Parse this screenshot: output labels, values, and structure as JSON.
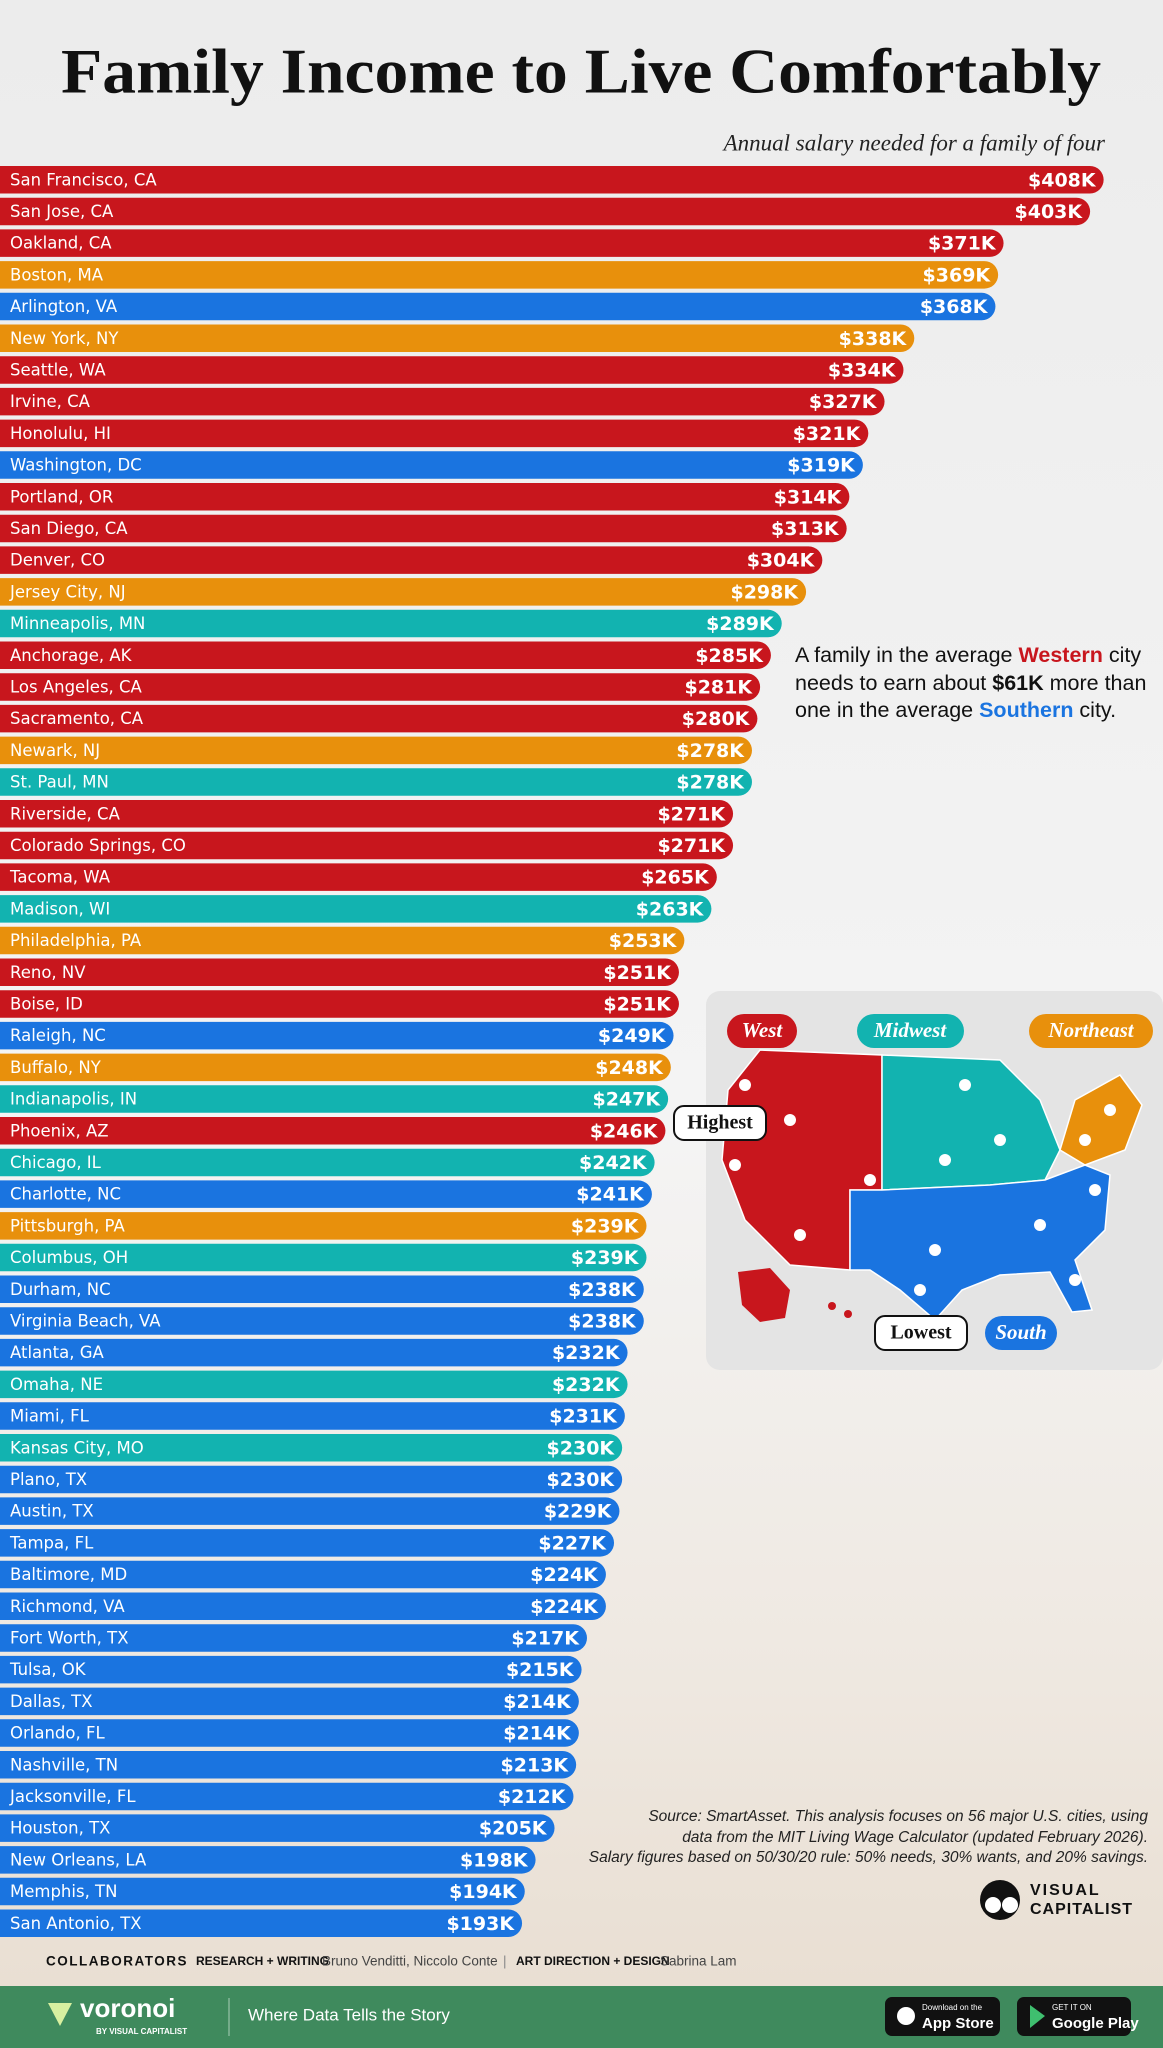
{
  "chart_data": {
    "type": "bar",
    "title": "Family Income to Live Comfortably",
    "subtitle": "Annual salary needed for a family of four",
    "categories": [
      "San Francisco, CA",
      "San Jose, CA",
      "Oakland, CA",
      "Boston, MA",
      "Arlington, VA",
      "New York, NY",
      "Seattle, WA",
      "Irvine, CA",
      "Honolulu, HI",
      "Washington, DC",
      "Portland, OR",
      "San Diego, CA",
      "Denver, CO",
      "Jersey City, NJ",
      "Minneapolis, MN",
      "Anchorage, AK",
      "Los Angeles, CA",
      "Sacramento, CA",
      "Newark, NJ",
      "St. Paul, MN",
      "Riverside, CA",
      "Colorado Springs, CO",
      "Tacoma, WA",
      "Madison, WI",
      "Philadelphia, PA",
      "Reno, NV",
      "Boise, ID",
      "Raleigh, NC",
      "Buffalo, NY",
      "Indianapolis, IN",
      "Phoenix, AZ",
      "Chicago, IL",
      "Charlotte, NC",
      "Pittsburgh, PA",
      "Columbus, OH",
      "Durham, NC",
      "Virginia Beach, VA",
      "Atlanta, GA",
      "Omaha, NE",
      "Miami, FL",
      "Kansas City, MO",
      "Plano, TX",
      "Austin, TX",
      "Tampa, FL",
      "Baltimore, MD",
      "Richmond, VA",
      "Fort Worth, TX",
      "Tulsa, OK",
      "Dallas, TX",
      "Orlando, FL",
      "Nashville, TN",
      "Jacksonville, FL",
      "Houston, TX",
      "New Orleans, LA",
      "Memphis, TN",
      "San Antonio, TX"
    ],
    "values": [
      408,
      403,
      371,
      369,
      368,
      338,
      334,
      327,
      321,
      319,
      314,
      313,
      304,
      298,
      289,
      285,
      281,
      280,
      278,
      278,
      271,
      271,
      265,
      263,
      253,
      251,
      251,
      249,
      248,
      247,
      246,
      242,
      241,
      239,
      239,
      238,
      238,
      232,
      232,
      231,
      230,
      230,
      229,
      227,
      224,
      224,
      217,
      215,
      214,
      214,
      213,
      212,
      205,
      198,
      194,
      193
    ],
    "value_labels": [
      "$408K",
      "$403K",
      "$371K",
      "$369K",
      "$368K",
      "$338K",
      "$334K",
      "$327K",
      "$321K",
      "$319K",
      "$314K",
      "$313K",
      "$304K",
      "$298K",
      "$289K",
      "$285K",
      "$281K",
      "$280K",
      "$278K",
      "$278K",
      "$271K",
      "$271K",
      "$265K",
      "$263K",
      "$253K",
      "$251K",
      "$251K",
      "$249K",
      "$248K",
      "$247K",
      "$246K",
      "$242K",
      "$241K",
      "$239K",
      "$239K",
      "$238K",
      "$238K",
      "$232K",
      "$232K",
      "$231K",
      "$230K",
      "$230K",
      "$229K",
      "$227K",
      "$224K",
      "$224K",
      "$217K",
      "$215K",
      "$214K",
      "$214K",
      "$213K",
      "$212K",
      "$205K",
      "$198K",
      "$194K",
      "$193K"
    ],
    "colors": [
      "#c8161d",
      "#c8161d",
      "#c8161d",
      "#e8900c",
      "#1a74e0",
      "#e8900c",
      "#c8161d",
      "#c8161d",
      "#c8161d",
      "#1a74e0",
      "#c8161d",
      "#c8161d",
      "#c8161d",
      "#e8900c",
      "#12b3b0",
      "#c8161d",
      "#c8161d",
      "#c8161d",
      "#e8900c",
      "#12b3b0",
      "#c8161d",
      "#c8161d",
      "#c8161d",
      "#12b3b0",
      "#e8900c",
      "#c8161d",
      "#c8161d",
      "#1a74e0",
      "#e8900c",
      "#12b3b0",
      "#c8161d",
      "#12b3b0",
      "#1a74e0",
      "#e8900c",
      "#12b3b0",
      "#1a74e0",
      "#1a74e0",
      "#1a74e0",
      "#12b3b0",
      "#1a74e0",
      "#12b3b0",
      "#1a74e0",
      "#1a74e0",
      "#1a74e0",
      "#1a74e0",
      "#1a74e0",
      "#1a74e0",
      "#1a74e0",
      "#1a74e0",
      "#1a74e0",
      "#1a74e0",
      "#1a74e0",
      "#1a74e0",
      "#1a74e0",
      "#1a74e0",
      "#1a74e0"
    ],
    "annotation": [
      [
        "A family in the average ",
        "Western",
        " city"
      ],
      [
        "needs to earn about ",
        "$61K",
        " more than"
      ],
      [
        "one in the average ",
        "Southern",
        " city."
      ]
    ],
    "map": {
      "regions": [
        "West",
        "Midwest",
        "Northeast",
        "South"
      ],
      "callouts": [
        "Highest",
        "Lowest"
      ]
    },
    "source": [
      "Source: SmartAsset. This analysis focuses on 56 major U.S. cities, using",
      "data from the MIT Living Wage Calculator (updated February 2026).",
      "Salary figures based on 50/30/20 rule: 50% needs, 30% wants, and 20% savings."
    ]
  },
  "brand": {
    "logo_top": "VISUAL",
    "logo_bottom": "CAPITALIST"
  },
  "credits": {
    "label": "COLLABORATORS",
    "role1": "RESEARCH + WRITING",
    "names1": "Bruno Venditti, Niccolo Conte",
    "sep": "|",
    "role2": "ART DIRECTION + DESIGN",
    "names2": "Sabrina Lam"
  },
  "footer": {
    "logo": "voronoi",
    "logo_sub": "BY VISUAL CAPITALIST",
    "tagline": "Where Data Tells the Story",
    "app_store_small": "Download on the",
    "app_store": "App Store",
    "google_small": "GET IT ON",
    "google": "Google Play"
  }
}
